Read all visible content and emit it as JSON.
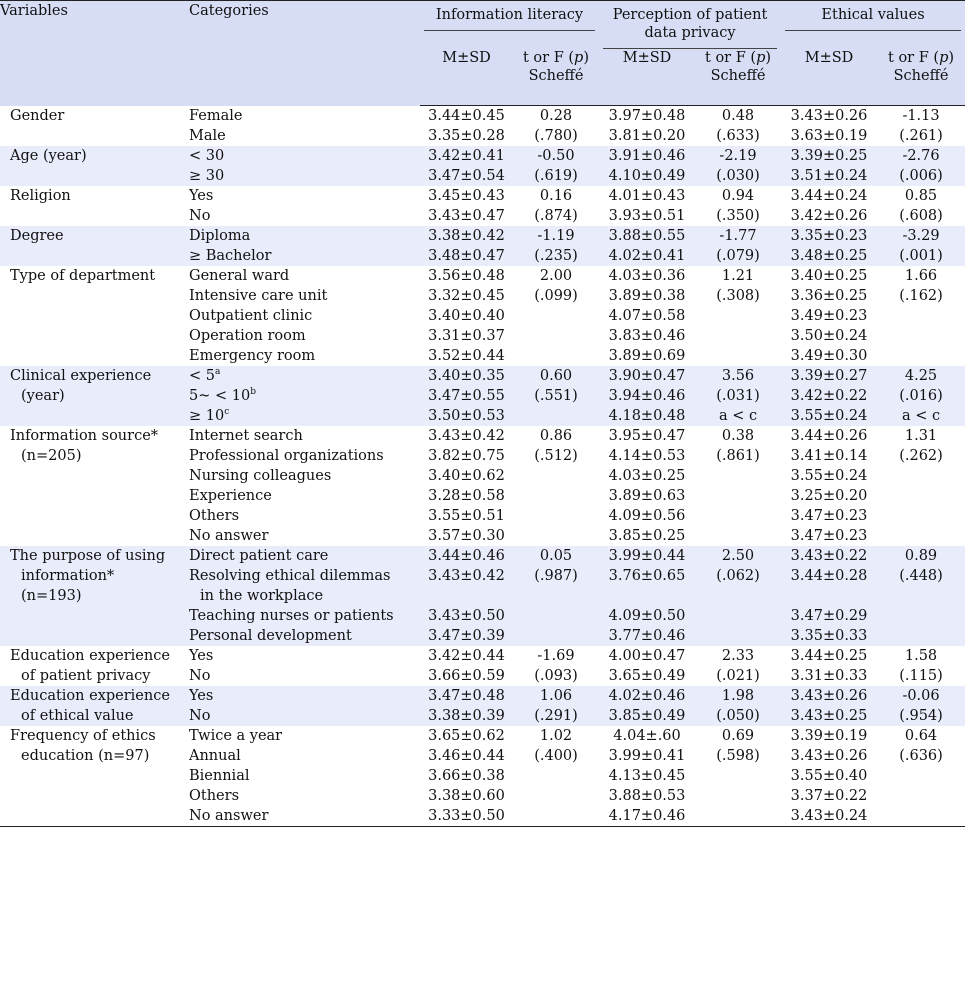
{
  "header": {
    "variables": "Variables",
    "categories": "Categories",
    "groups": [
      {
        "label": "Information literacy"
      },
      {
        "label": "Perception of patient data privacy"
      },
      {
        "label": "Ethical values"
      }
    ],
    "msd": "M±SD",
    "tf": "t or F (",
    "p": "p",
    "tf_close": ")",
    "scheffe": "Scheffé"
  },
  "rows": [
    {
      "v": [
        "Gender"
      ],
      "cats": [
        {
          "t": "Female"
        },
        {
          "t": "Male"
        }
      ],
      "il": [
        "3.44±0.45",
        "3.35±0.28"
      ],
      "il_t": [
        "0.28",
        "(.780)"
      ],
      "pp": [
        "3.97±0.48",
        "3.81±0.20"
      ],
      "pp_t": [
        "0.48",
        "(.633)"
      ],
      "ev": [
        "3.43±0.26",
        "3.63±0.19"
      ],
      "ev_t": [
        "-1.13",
        "(.261)"
      ]
    },
    {
      "v": [
        "Age (year)"
      ],
      "cats": [
        {
          "t": "< 30"
        },
        {
          "t": "≥ 30"
        }
      ],
      "il": [
        "3.42±0.41",
        "3.47±0.54"
      ],
      "il_t": [
        "-0.50",
        "(.619)"
      ],
      "pp": [
        "3.91±0.46",
        "4.10±0.49"
      ],
      "pp_t": [
        "-2.19",
        "(.030)"
      ],
      "ev": [
        "3.39±0.25",
        "3.51±0.24"
      ],
      "ev_t": [
        "-2.76",
        "(.006)"
      ]
    },
    {
      "v": [
        "Religion"
      ],
      "cats": [
        {
          "t": "Yes"
        },
        {
          "t": "No"
        }
      ],
      "il": [
        "3.45±0.43",
        "3.43±0.47"
      ],
      "il_t": [
        "0.16",
        "(.874)"
      ],
      "pp": [
        "4.01±0.43",
        "3.93±0.51"
      ],
      "pp_t": [
        "0.94",
        "(.350)"
      ],
      "ev": [
        "3.44±0.24",
        "3.42±0.26"
      ],
      "ev_t": [
        "0.85",
        "(.608)"
      ]
    },
    {
      "v": [
        "Degree"
      ],
      "cats": [
        {
          "t": "Diploma"
        },
        {
          "t": "≥ Bachelor"
        }
      ],
      "il": [
        "3.38±0.42",
        "3.48±0.47"
      ],
      "il_t": [
        "-1.19",
        "(.235)"
      ],
      "pp": [
        "3.88±0.55",
        "4.02±0.41"
      ],
      "pp_t": [
        "-1.77",
        "(.079)"
      ],
      "ev": [
        "3.35±0.23",
        "3.48±0.25"
      ],
      "ev_t": [
        "-3.29",
        "(.001)"
      ]
    },
    {
      "v": [
        "Type of department"
      ],
      "cats": [
        {
          "t": "General ward"
        },
        {
          "t": "Intensive care unit"
        },
        {
          "t": "Outpatient clinic"
        },
        {
          "t": "Operation room"
        },
        {
          "t": "Emergency room"
        }
      ],
      "il": [
        "3.56±0.48",
        "3.32±0.45",
        "3.40±0.40",
        "3.31±0.37",
        "3.52±0.44"
      ],
      "il_t": [
        "2.00",
        "(.099)"
      ],
      "pp": [
        "4.03±0.36",
        "3.89±0.38",
        "4.07±0.58",
        "3.83±0.46",
        "3.89±0.69"
      ],
      "pp_t": [
        "1.21",
        "(.308)"
      ],
      "ev": [
        "3.40±0.25",
        "3.36±0.25",
        "3.49±0.23",
        "3.50±0.24",
        "3.49±0.30"
      ],
      "ev_t": [
        "1.66",
        "(.162)"
      ]
    },
    {
      "v": [
        "Clinical experience",
        "(year)"
      ],
      "cats": [
        {
          "t": "< 5",
          "sup": "a"
        },
        {
          "t": "5~ < 10",
          "sup": "b"
        },
        {
          "t": "≥ 10",
          "sup": "c"
        }
      ],
      "il": [
        "3.40±0.35",
        "3.47±0.55",
        "3.50±0.53"
      ],
      "il_t": [
        "0.60",
        "(.551)"
      ],
      "pp": [
        "3.90±0.47",
        "3.94±0.46",
        "4.18±0.48"
      ],
      "pp_t": [
        "3.56",
        "(.031)",
        "a < c"
      ],
      "ev": [
        "3.39±0.27",
        "3.42±0.22",
        "3.55±0.24"
      ],
      "ev_t": [
        "4.25",
        "(.016)",
        "a < c"
      ]
    },
    {
      "v": [
        "Information source*",
        "(n=205)"
      ],
      "cats": [
        {
          "t": "Internet search"
        },
        {
          "t": "Professional organizations"
        },
        {
          "t": "Nursing colleagues"
        },
        {
          "t": "Experience"
        },
        {
          "t": "Others"
        },
        {
          "t": "No answer"
        }
      ],
      "il": [
        "3.43±0.42",
        "3.82±0.75",
        "3.40±0.62",
        "3.28±0.58",
        "3.55±0.51",
        "3.57±0.30"
      ],
      "il_t": [
        "0.86",
        "(.512)"
      ],
      "pp": [
        "3.95±0.47",
        "4.14±0.53",
        "4.03±0.25",
        "3.89±0.63",
        "4.09±0.56",
        "3.85±0.25"
      ],
      "pp_t": [
        "0.38",
        "(.861)"
      ],
      "ev": [
        "3.44±0.26",
        "3.41±0.14",
        "3.55±0.24",
        "3.25±0.20",
        "3.47±0.23",
        "3.47±0.23"
      ],
      "ev_t": [
        "1.31",
        "(.262)"
      ]
    },
    {
      "v": [
        "The purpose of using",
        "information*",
        "(n=193)"
      ],
      "cats": [
        {
          "t": "Direct patient care"
        },
        {
          "t": "Resolving ethical dilemmas",
          "cont": "in the workplace"
        },
        {
          "t": "Teaching nurses or patients"
        },
        {
          "t": "Personal development"
        }
      ],
      "il": [
        "3.44±0.46",
        "3.43±0.42",
        "3.43±0.50",
        "3.47±0.39"
      ],
      "il_t": [
        "0.05",
        "(.987)"
      ],
      "pp": [
        "3.99±0.44",
        "3.76±0.65",
        "4.09±0.50",
        "3.77±0.46"
      ],
      "pp_t": [
        "2.50",
        "(.062)"
      ],
      "ev": [
        "3.43±0.22",
        "3.44±0.28",
        "3.47±0.29",
        "3.35±0.33"
      ],
      "ev_t": [
        "0.89",
        "(.448)"
      ]
    },
    {
      "v": [
        "Education experience",
        "of patient privacy"
      ],
      "cats": [
        {
          "t": "Yes"
        },
        {
          "t": "No"
        }
      ],
      "il": [
        "3.42±0.44",
        "3.66±0.59"
      ],
      "il_t": [
        "-1.69",
        "(.093)"
      ],
      "pp": [
        "4.00±0.47",
        "3.65±0.49"
      ],
      "pp_t": [
        "2.33",
        "(.021)"
      ],
      "ev": [
        "3.44±0.25",
        "3.31±0.33"
      ],
      "ev_t": [
        "1.58",
        "(.115)"
      ]
    },
    {
      "v": [
        "Education experience",
        "of ethical value"
      ],
      "cats": [
        {
          "t": "Yes"
        },
        {
          "t": "No"
        }
      ],
      "il": [
        "3.47±0.48",
        "3.38±0.39"
      ],
      "il_t": [
        "1.06",
        "(.291)"
      ],
      "pp": [
        "4.02±0.46",
        "3.85±0.49"
      ],
      "pp_t": [
        "1.98",
        "(.050)"
      ],
      "ev": [
        "3.43±0.26",
        "3.43±0.25"
      ],
      "ev_t": [
        "-0.06",
        "(.954)"
      ]
    },
    {
      "v": [
        "Frequency of ethics",
        "education (n=97)"
      ],
      "cats": [
        {
          "t": "Twice a year"
        },
        {
          "t": "Annual"
        },
        {
          "t": "Biennial"
        },
        {
          "t": "Others"
        },
        {
          "t": "No answer"
        }
      ],
      "il": [
        "3.65±0.62",
        "3.46±0.44",
        "3.66±0.38",
        "3.38±0.60",
        "3.33±0.50"
      ],
      "il_t": [
        "1.02",
        "(.400)"
      ],
      "pp": [
        "4.04±.60",
        "3.99±0.41",
        "4.13±0.45",
        "3.88±0.53",
        "4.17±0.46"
      ],
      "pp_t": [
        "0.69",
        "(.598)"
      ],
      "ev": [
        "3.39±0.19",
        "3.43±0.26",
        "3.55±0.40",
        "3.37±0.22",
        "3.43±0.24"
      ],
      "ev_t": [
        "0.64",
        "(.636)"
      ]
    }
  ]
}
